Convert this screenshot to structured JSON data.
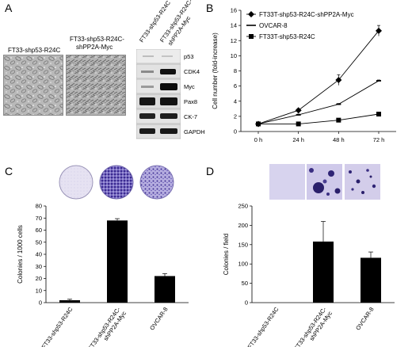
{
  "panels": {
    "a": "A",
    "b": "B",
    "c": "C",
    "d": "D"
  },
  "panel_a": {
    "image_left_caption": "FT33-shp53-R24C",
    "image_right_caption_line1": "FT33-shp53-R24C-",
    "image_right_caption_line2": "shPP2A-Myc",
    "blot_lane1": "FT33-shp53-R24C",
    "blot_lane2_line1": "FT33-shp53-R24C-",
    "blot_lane2_line2": "shPP2A-Myc",
    "blot_rows": [
      "p53",
      "CDK4",
      "Myc",
      "Pax8",
      "CK-7",
      "GAPDH"
    ]
  },
  "chart_data": [
    {
      "panel": "B",
      "type": "line",
      "categories": [
        "0 h",
        "24 h",
        "48 h",
        "72 h"
      ],
      "ylabel": "Cell number (fold-increase)",
      "xlabel": "",
      "ylim": [
        0,
        16
      ],
      "yticks": [
        0,
        2,
        4,
        6,
        8,
        10,
        12,
        14,
        16
      ],
      "legend_position": "top-left",
      "series": [
        {
          "name": "FT33T-shp53-R24C-shPP2A-Myc",
          "marker": "diamond",
          "values": [
            1.0,
            2.8,
            6.8,
            13.3
          ],
          "errors": [
            0.15,
            0.2,
            0.7,
            0.7
          ]
        },
        {
          "name": "OVCAR-8",
          "marker": "dash",
          "values": [
            1.0,
            2.2,
            3.6,
            6.7
          ],
          "errors": [
            0.1,
            0.1,
            0.1,
            0.1
          ]
        },
        {
          "name": "FT33T-shp53-R24C",
          "marker": "square",
          "values": [
            1.0,
            1.0,
            1.5,
            2.3
          ],
          "errors": [
            0.1,
            0.1,
            0.1,
            0.2
          ]
        }
      ]
    },
    {
      "panel": "C",
      "type": "bar",
      "categories": [
        "FT33-shp53-R24C",
        "FT33-shp53-R24C-\nshPP2A-Myc",
        "OVCAR-8"
      ],
      "values": [
        2,
        68,
        22
      ],
      "errors": [
        0.8,
        1.5,
        2
      ],
      "ylabel": "Colonies / 1000 cells",
      "xlabel": "",
      "ylim": [
        0,
        80
      ],
      "yticks": [
        0,
        10,
        20,
        30,
        40,
        50,
        60,
        70,
        80
      ]
    },
    {
      "panel": "D",
      "type": "bar",
      "categories": [
        "FT33-shp53-R24C",
        "FT33-shp53-R24C-\nshPP2A-Myc",
        "OVCAR-8"
      ],
      "values": [
        0,
        158,
        116
      ],
      "errors": [
        0,
        52,
        15
      ],
      "ylabel": "Colonies / field",
      "xlabel": "",
      "ylim": [
        0,
        250
      ],
      "yticks": [
        0,
        50,
        100,
        150,
        200,
        250
      ]
    }
  ]
}
